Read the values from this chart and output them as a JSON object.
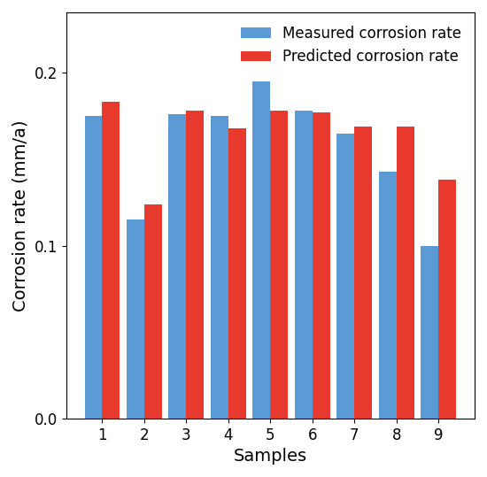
{
  "categories": [
    "1",
    "2",
    "3",
    "4",
    "5",
    "6",
    "7",
    "8",
    "9"
  ],
  "measured": [
    0.175,
    0.115,
    0.176,
    0.175,
    0.195,
    0.178,
    0.165,
    0.143,
    0.1
  ],
  "predicted": [
    0.183,
    0.124,
    0.178,
    0.168,
    0.178,
    0.177,
    0.169,
    0.169,
    0.138
  ],
  "measured_color": "#5b9bd5",
  "predicted_color": "#e8392e",
  "xlabel": "Samples",
  "ylabel": "Corrosion rate (mm/a)",
  "legend_measured": "Measured corrosion rate",
  "legend_predicted": "Predicted corrosion rate",
  "ylim": [
    0.0,
    0.235
  ],
  "yticks": [
    0.0,
    0.1,
    0.2
  ],
  "bar_width": 0.42,
  "legend_fontsize": 12,
  "axis_label_fontsize": 14,
  "tick_fontsize": 12,
  "figsize": [
    5.5,
    5.39
  ],
  "dpi": 100,
  "legend_loc": "upper right"
}
